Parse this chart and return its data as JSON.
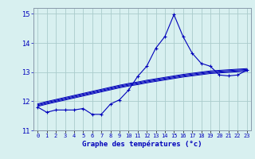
{
  "title": "Graphe des températures (°c)",
  "x_hours": [
    0,
    1,
    2,
    3,
    4,
    5,
    6,
    7,
    8,
    9,
    10,
    11,
    12,
    13,
    14,
    15,
    16,
    17,
    18,
    19,
    20,
    21,
    22,
    23
  ],
  "main_temp": [
    11.8,
    11.62,
    11.7,
    11.7,
    11.7,
    11.75,
    11.55,
    11.55,
    11.9,
    12.05,
    12.38,
    12.85,
    13.2,
    13.82,
    14.22,
    14.97,
    14.22,
    13.65,
    13.3,
    13.2,
    12.9,
    12.87,
    12.9,
    13.06
  ],
  "ref_line1": [
    11.82,
    11.9,
    11.97,
    12.04,
    12.11,
    12.18,
    12.25,
    12.32,
    12.39,
    12.46,
    12.52,
    12.57,
    12.63,
    12.68,
    12.73,
    12.78,
    12.83,
    12.87,
    12.91,
    12.95,
    12.97,
    12.99,
    13.01,
    13.03
  ],
  "ref_line2": [
    11.85,
    11.93,
    12.0,
    12.07,
    12.14,
    12.21,
    12.28,
    12.35,
    12.42,
    12.49,
    12.55,
    12.6,
    12.66,
    12.71,
    12.76,
    12.81,
    12.86,
    12.9,
    12.94,
    12.98,
    13.0,
    13.02,
    13.04,
    13.06
  ],
  "ref_line3": [
    11.88,
    11.96,
    12.03,
    12.1,
    12.17,
    12.24,
    12.31,
    12.38,
    12.45,
    12.52,
    12.58,
    12.63,
    12.69,
    12.74,
    12.79,
    12.84,
    12.89,
    12.93,
    12.97,
    13.01,
    13.03,
    13.05,
    13.07,
    13.09
  ],
  "ref_line4": [
    11.91,
    11.99,
    12.06,
    12.13,
    12.2,
    12.27,
    12.34,
    12.41,
    12.48,
    12.55,
    12.61,
    12.66,
    12.72,
    12.77,
    12.82,
    12.87,
    12.92,
    12.96,
    13.0,
    13.04,
    13.06,
    13.08,
    13.1,
    13.12
  ],
  "ylim": [
    11.0,
    15.2
  ],
  "yticks": [
    11,
    12,
    13,
    14,
    15
  ],
  "bg_color": "#d8f0f0",
  "line_color": "#0000bb",
  "grid_color": "#aacccc",
  "spine_color": "#8899aa"
}
